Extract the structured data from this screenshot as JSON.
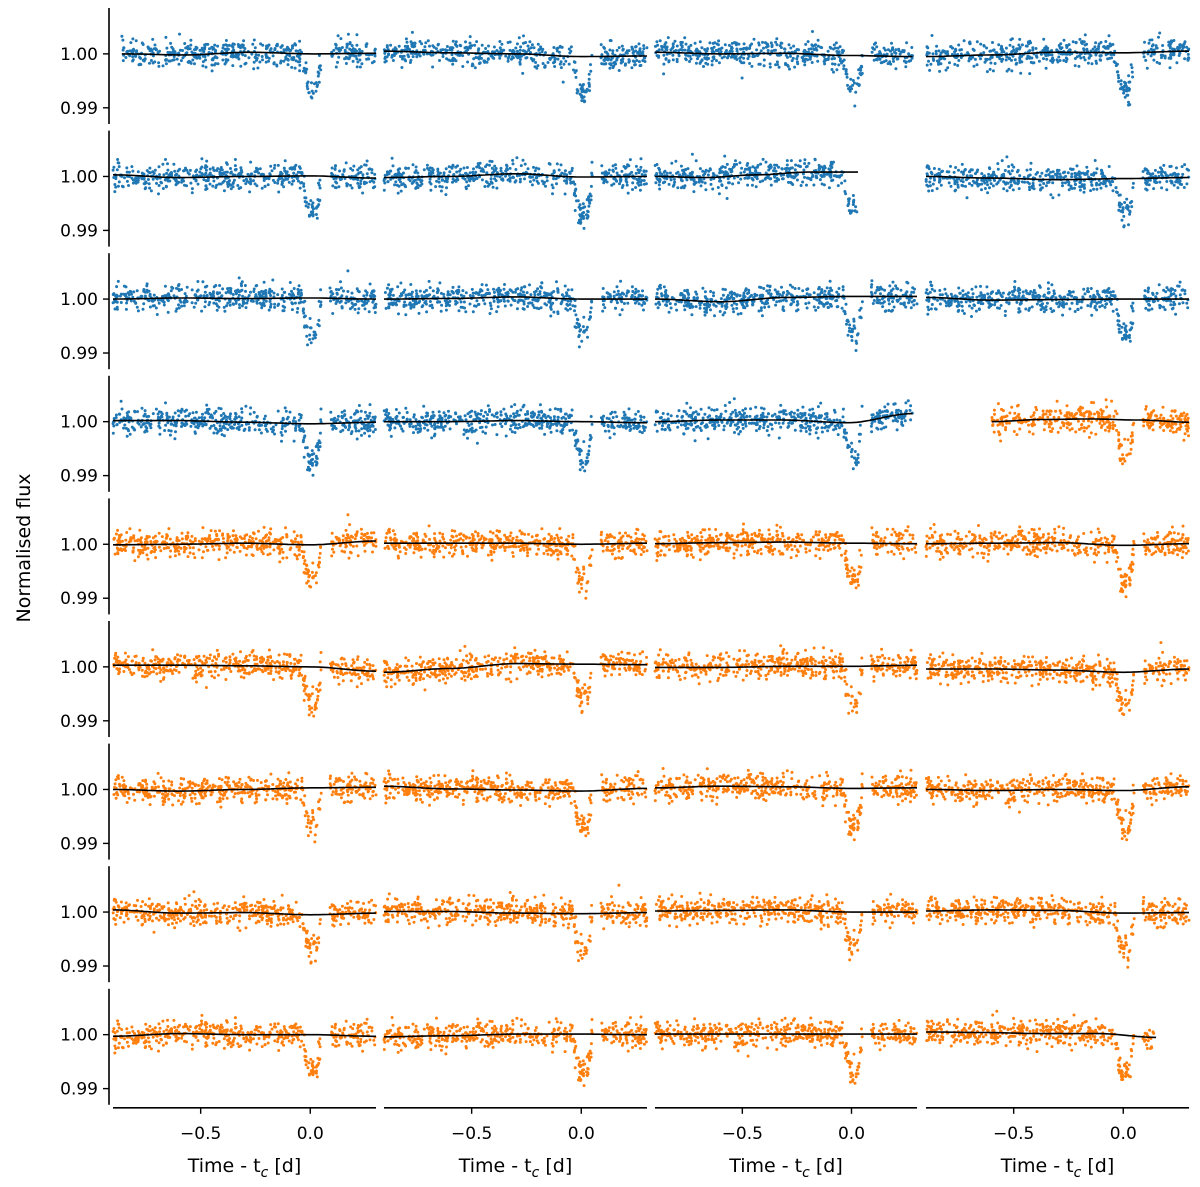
{
  "chart_data": {
    "type": "scatter",
    "description_type": "grid of light-curve panels (9 rows x 4 columns) with data points and a black trend model",
    "ylabel": "Normalised flux",
    "xlabel_main": "Time - t",
    "xlabel_sub": "c",
    "xlabel_unit": " [d]",
    "xlim": [
      -0.9,
      0.3
    ],
    "ylim": [
      0.987,
      1.0085
    ],
    "xticks": [
      -0.5,
      0.0
    ],
    "xtick_labels": [
      "−0.5",
      "0.0"
    ],
    "yticks": [
      1.0,
      0.99
    ],
    "ytick_labels": [
      "1.00",
      "0.99"
    ],
    "colors": {
      "blue": "#1f77b4",
      "orange": "#ff7f0e",
      "model": "#000000"
    },
    "transit": {
      "depth": 0.0065,
      "t1": -0.04,
      "t2": -0.01,
      "t3": 0.03,
      "t4": 0.05,
      "data_gap": [
        0.05,
        0.09
      ],
      "scatter": 0.0012
    },
    "panels": [
      {
        "row": 0,
        "col": 0,
        "color": "blue",
        "x_start": -0.86,
        "x_end": 0.3,
        "trend": [
          1.0,
          0.9998,
          1.0003,
          1.0,
          1.0001
        ]
      },
      {
        "row": 0,
        "col": 1,
        "color": "blue",
        "x_start": -0.9,
        "x_end": 0.3,
        "trend": [
          1.0005,
          1.0002,
          1.0,
          0.9995,
          0.9996
        ]
      },
      {
        "row": 0,
        "col": 2,
        "color": "blue",
        "x_start": -0.9,
        "x_end": 0.28,
        "trend": [
          1.0003,
          1.0,
          1.0001,
          0.9997,
          0.9995
        ]
      },
      {
        "row": 0,
        "col": 3,
        "color": "blue",
        "x_start": -0.9,
        "x_end": 0.3,
        "trend": [
          0.9995,
          0.9998,
          1.0003,
          1.0002,
          1.0005
        ]
      },
      {
        "row": 1,
        "col": 0,
        "color": "blue",
        "x_start": -0.9,
        "x_end": 0.3,
        "trend": [
          1.0003,
          0.9998,
          1.0,
          1.0001,
          0.9997
        ]
      },
      {
        "row": 1,
        "col": 1,
        "color": "blue",
        "x_start": -0.9,
        "x_end": 0.3,
        "trend": [
          0.9998,
          1.0,
          1.0005,
          0.9999,
          1.0
        ]
      },
      {
        "row": 1,
        "col": 2,
        "color": "blue",
        "x_start": -0.9,
        "x_end": 0.03,
        "trend": [
          1.0,
          0.9998,
          1.0003,
          1.0008,
          1.0008
        ]
      },
      {
        "row": 1,
        "col": 3,
        "color": "blue",
        "x_start": -0.9,
        "x_end": 0.3,
        "trend": [
          1.0,
          0.9997,
          0.9994,
          0.9996,
          0.9998
        ]
      },
      {
        "row": 2,
        "col": 0,
        "color": "blue",
        "x_start": -0.9,
        "x_end": 0.3,
        "trend": [
          1.0,
          1.0002,
          1.0001,
          1.0002,
          1.0
        ]
      },
      {
        "row": 2,
        "col": 1,
        "color": "blue",
        "x_start": -0.9,
        "x_end": 0.3,
        "trend": [
          1.0,
          1.0001,
          1.0004,
          1.0,
          1.0
        ]
      },
      {
        "row": 2,
        "col": 2,
        "color": "blue",
        "x_start": -0.9,
        "x_end": 0.3,
        "trend": [
          1.0,
          0.9995,
          1.0003,
          1.0005,
          1.0005
        ]
      },
      {
        "row": 2,
        "col": 3,
        "color": "blue",
        "x_start": -0.9,
        "x_end": 0.3,
        "trend": [
          1.0003,
          0.9998,
          0.9999,
          1.0,
          1.0
        ]
      },
      {
        "row": 3,
        "col": 0,
        "color": "blue",
        "x_start": -0.9,
        "x_end": 0.3,
        "trend": [
          1.0002,
          1.0002,
          0.9999,
          0.9996,
          0.9999
        ]
      },
      {
        "row": 3,
        "col": 1,
        "color": "blue",
        "x_start": -0.9,
        "x_end": 0.3,
        "trend": [
          1.0,
          1.0,
          1.0002,
          1.0,
          0.9998
        ]
      },
      {
        "row": 3,
        "col": 2,
        "color": "blue",
        "x_start": -0.9,
        "x_end": 0.28,
        "trend": [
          1.0,
          1.0003,
          1.0003,
          0.9998,
          1.0015
        ]
      },
      {
        "row": 3,
        "col": 3,
        "color": "orange",
        "x_start": -0.6,
        "x_end": 0.3,
        "trend": [
          1.0,
          1.0004,
          1.0005,
          1.0003,
          0.9999
        ]
      },
      {
        "row": 4,
        "col": 0,
        "color": "orange",
        "x_start": -0.9,
        "x_end": 0.3,
        "trend": [
          0.9999,
          1.0,
          1.0002,
          0.9999,
          1.0006
        ]
      },
      {
        "row": 4,
        "col": 1,
        "color": "orange",
        "x_start": -0.9,
        "x_end": 0.3,
        "trend": [
          1.0002,
          1.0002,
          1.0002,
          1.0,
          1.0002
        ]
      },
      {
        "row": 4,
        "col": 2,
        "color": "orange",
        "x_start": -0.9,
        "x_end": 0.3,
        "trend": [
          1.0001,
          1.0003,
          1.0004,
          1.0002,
          1.0001
        ]
      },
      {
        "row": 4,
        "col": 3,
        "color": "orange",
        "x_start": -0.9,
        "x_end": 0.3,
        "trend": [
          1.0001,
          1.0002,
          1.0003,
          0.9998,
          1.0001
        ]
      },
      {
        "row": 5,
        "col": 0,
        "color": "orange",
        "x_start": -0.9,
        "x_end": 0.3,
        "trend": [
          1.0003,
          1.0003,
          1.0002,
          1.0,
          0.9992
        ]
      },
      {
        "row": 5,
        "col": 1,
        "color": "orange",
        "x_start": -0.9,
        "x_end": 0.3,
        "trend": [
          0.999,
          0.9997,
          1.0006,
          1.0005,
          1.0004
        ]
      },
      {
        "row": 5,
        "col": 2,
        "color": "orange",
        "x_start": -0.9,
        "x_end": 0.3,
        "trend": [
          0.9999,
          0.9999,
          1.0001,
          1.0001,
          1.0003
        ]
      },
      {
        "row": 5,
        "col": 3,
        "color": "orange",
        "x_start": -0.9,
        "x_end": 0.3,
        "trend": [
          0.9996,
          0.9996,
          0.9994,
          0.999,
          0.9996
        ]
      },
      {
        "row": 6,
        "col": 0,
        "color": "orange",
        "x_start": -0.9,
        "x_end": 0.3,
        "trend": [
          1.0,
          0.9997,
          1.0,
          1.0003,
          1.0004
        ]
      },
      {
        "row": 6,
        "col": 1,
        "color": "orange",
        "x_start": -0.9,
        "x_end": 0.3,
        "trend": [
          1.0006,
          1.0001,
          0.9999,
          0.9997,
          1.0002
        ]
      },
      {
        "row": 6,
        "col": 2,
        "color": "orange",
        "x_start": -0.9,
        "x_end": 0.3,
        "trend": [
          1.0003,
          1.0006,
          1.0005,
          1.0002,
          1.0003
        ]
      },
      {
        "row": 6,
        "col": 3,
        "color": "orange",
        "x_start": -0.9,
        "x_end": 0.3,
        "trend": [
          1.0,
          0.9998,
          1.0,
          0.9998,
          1.0005
        ]
      },
      {
        "row": 7,
        "col": 0,
        "color": "orange",
        "x_start": -0.9,
        "x_end": 0.3,
        "trend": [
          1.0004,
          0.9998,
          0.9999,
          0.9995,
          0.9998
        ]
      },
      {
        "row": 7,
        "col": 1,
        "color": "orange",
        "x_start": -0.9,
        "x_end": 0.3,
        "trend": [
          1.0001,
          1.0001,
          0.9998,
          0.9997,
          0.9999
        ]
      },
      {
        "row": 7,
        "col": 2,
        "color": "orange",
        "x_start": -0.9,
        "x_end": 0.3,
        "trend": [
          1.0002,
          1.0003,
          1.0004,
          1.0,
          1.0
        ]
      },
      {
        "row": 7,
        "col": 3,
        "color": "orange",
        "x_start": -0.9,
        "x_end": 0.3,
        "trend": [
          1.0002,
          1.0004,
          1.0003,
          0.9998,
          0.9999
        ]
      },
      {
        "row": 8,
        "col": 0,
        "color": "orange",
        "x_start": -0.9,
        "x_end": 0.3,
        "trend": [
          0.9997,
          1.0002,
          1.0,
          1.0,
          0.9997
        ]
      },
      {
        "row": 8,
        "col": 1,
        "color": "orange",
        "x_start": -0.9,
        "x_end": 0.3,
        "trend": [
          0.9996,
          0.9998,
          1.0001,
          1.0001,
          1.0
        ]
      },
      {
        "row": 8,
        "col": 2,
        "color": "orange",
        "x_start": -0.9,
        "x_end": 0.3,
        "trend": [
          1.0001,
          1.0001,
          1.0001,
          1.0001,
          1.0001
        ]
      },
      {
        "row": 8,
        "col": 3,
        "color": "orange",
        "x_start": -0.9,
        "x_end": 0.15,
        "trend": [
          1.0005,
          1.0004,
          1.0002,
          1.0002,
          0.9995
        ]
      }
    ]
  }
}
